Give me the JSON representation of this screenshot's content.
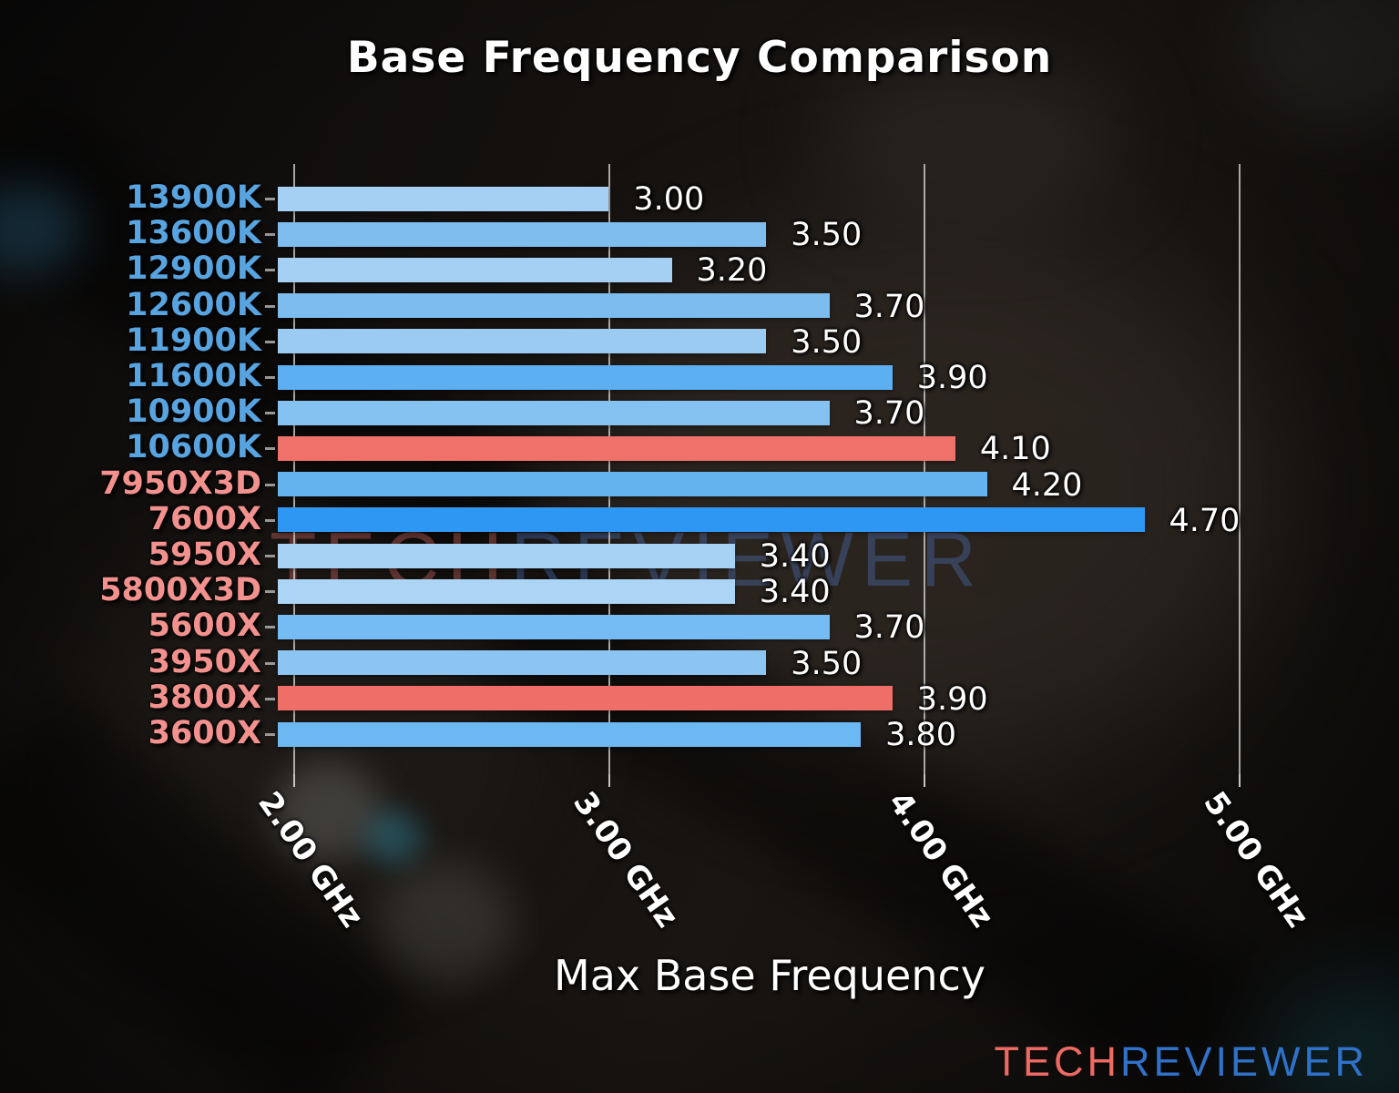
{
  "title": "Base Frequency Comparison",
  "watermark": {
    "tech": "TECH",
    "reviewer": "REVIEWER"
  },
  "logo": {
    "tech": "TECH",
    "reviewer": "REVIEWER"
  },
  "colors": {
    "intel_label": "#57a4e0",
    "amd_label": "#f2918d",
    "value_label": "#ffffff",
    "gridline": "rgba(205,205,205,0.8)",
    "logo_tech": "#ee6a62",
    "logo_reviewer": "#3071c9",
    "red_bar": "#f0716a",
    "strong_blue_bar": "#2e96f3"
  },
  "chart_data": {
    "type": "bar",
    "orientation": "horizontal",
    "title": "Base Frequency Comparison",
    "xlabel": "Max Base Frequency",
    "ylabel": "",
    "legend": "none",
    "grid": "vertical",
    "xlim": [
      1.95,
      5.32
    ],
    "x_tick_values": [
      2,
      3,
      4,
      5
    ],
    "x_ticks": [
      "2.00 GHz",
      "3.00 GHz",
      "4.00 GHz",
      "5.00 GHz"
    ],
    "categories": [
      "13900K",
      "13600K",
      "12900K",
      "12600K",
      "11900K",
      "11600K",
      "10900K",
      "10600K",
      "7950X3D",
      "7600X",
      "5950X",
      "5800X3D",
      "5600X",
      "3950X",
      "3800X",
      "3600X"
    ],
    "values": [
      3.0,
      3.5,
      3.2,
      3.7,
      3.5,
      3.9,
      3.7,
      4.1,
      4.2,
      4.7,
      3.4,
      3.4,
      3.7,
      3.5,
      3.9,
      3.8
    ],
    "value_labels": [
      "3.00",
      "3.50",
      "3.20",
      "3.70",
      "3.50",
      "3.90",
      "3.70",
      "4.10",
      "4.20",
      "4.70",
      "3.40",
      "3.40",
      "3.70",
      "3.50",
      "3.90",
      "3.80"
    ],
    "vendors": [
      "intel",
      "intel",
      "intel",
      "intel",
      "intel",
      "intel",
      "intel",
      "intel",
      "amd",
      "amd",
      "amd",
      "amd",
      "amd",
      "amd",
      "amd",
      "amd"
    ],
    "bar_colors": [
      "#a6d0f3",
      "#7fbdef",
      "#a6d0f3",
      "#7cbcee",
      "#9ccbf2",
      "#5caff0",
      "#85c2f1",
      "#f0716a",
      "#64b3ef",
      "#2e96f3",
      "#a8d2f4",
      "#abd4f5",
      "#74bcf3",
      "#8cc5f2",
      "#ef6e67",
      "#6cb8f2"
    ],
    "label_colors": [
      "#57a4e0",
      "#57a4e0",
      "#57a4e0",
      "#57a4e0",
      "#57a4e0",
      "#57a4e0",
      "#57a4e0",
      "#57a4e0",
      "#f2918d",
      "#f2918d",
      "#f2918d",
      "#f2918d",
      "#f2918d",
      "#f2918d",
      "#f2918d",
      "#f2918d"
    ]
  }
}
